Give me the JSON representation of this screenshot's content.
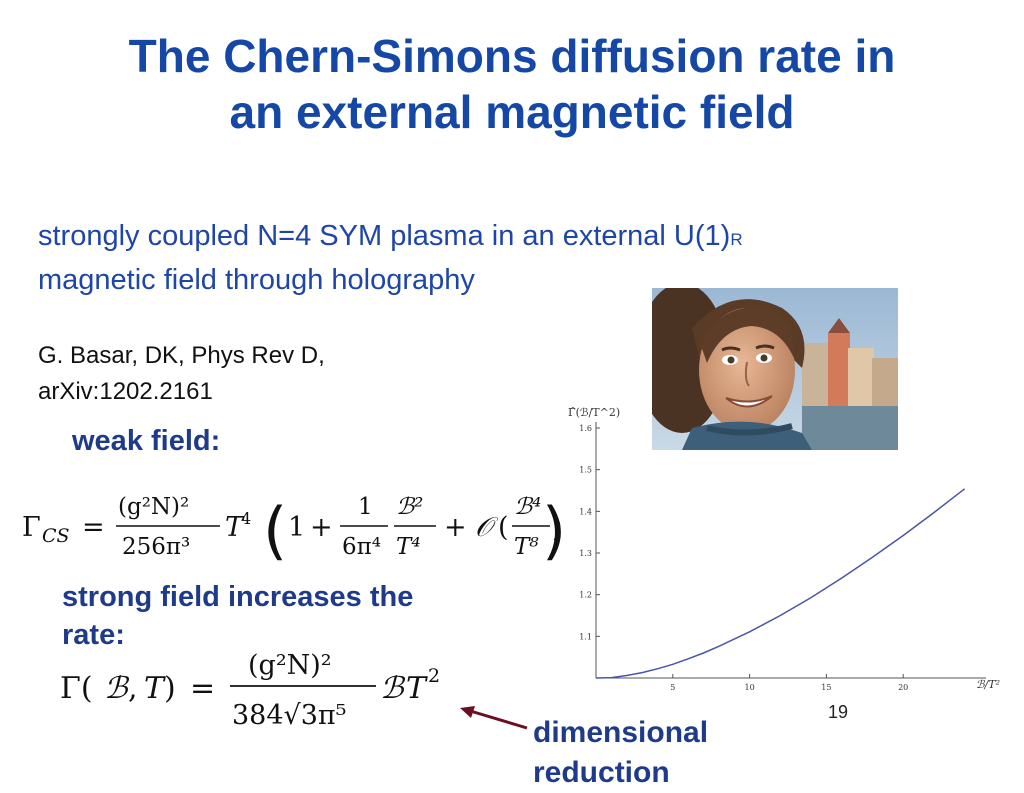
{
  "slide": {
    "title_line1": "The Chern-Simons diffusion rate in",
    "title_line2": "an external magnetic field",
    "subtitle_part1": "strongly coupled N=4 SYM plasma in an external U(1)",
    "subtitle_subscript": "R",
    "subtitle_part2": "magnetic field through holography",
    "ref_line1": "G. Basar, DK, Phys Rev D,",
    "ref_line2": "arXiv:1202.2161",
    "weak_label": "weak field:",
    "strong_label_line1": "strong field increases the",
    "strong_label_line2": "rate:",
    "dim_line1": "dimensional",
    "dim_line2": "reduction",
    "page_number": "19"
  },
  "colors": {
    "title": "#1548a6",
    "labels": "#1e3a8a",
    "arrow": "#6b1020",
    "curve": "#4a55a8"
  },
  "chart_data": {
    "type": "line",
    "title": "",
    "ylabel": "Γ̂(ℬ/T^2)",
    "xlabel": "ℬ/T²",
    "xlim": [
      0,
      25
    ],
    "ylim": [
      1.0,
      1.6
    ],
    "xticks": [
      5,
      10,
      15,
      20
    ],
    "yticks": [
      1.1,
      1.2,
      1.3,
      1.4,
      1.5,
      1.6
    ],
    "grid": false,
    "series": [
      {
        "x": [
          0,
          1,
          2,
          3,
          4,
          5,
          6,
          7,
          8,
          10,
          12,
          14,
          16,
          18,
          20,
          22,
          24
        ],
        "y": [
          1.0,
          1.001,
          1.006,
          1.013,
          1.022,
          1.033,
          1.046,
          1.06,
          1.076,
          1.111,
          1.15,
          1.193,
          1.24,
          1.29,
          1.342,
          1.397,
          1.454
        ]
      }
    ]
  }
}
